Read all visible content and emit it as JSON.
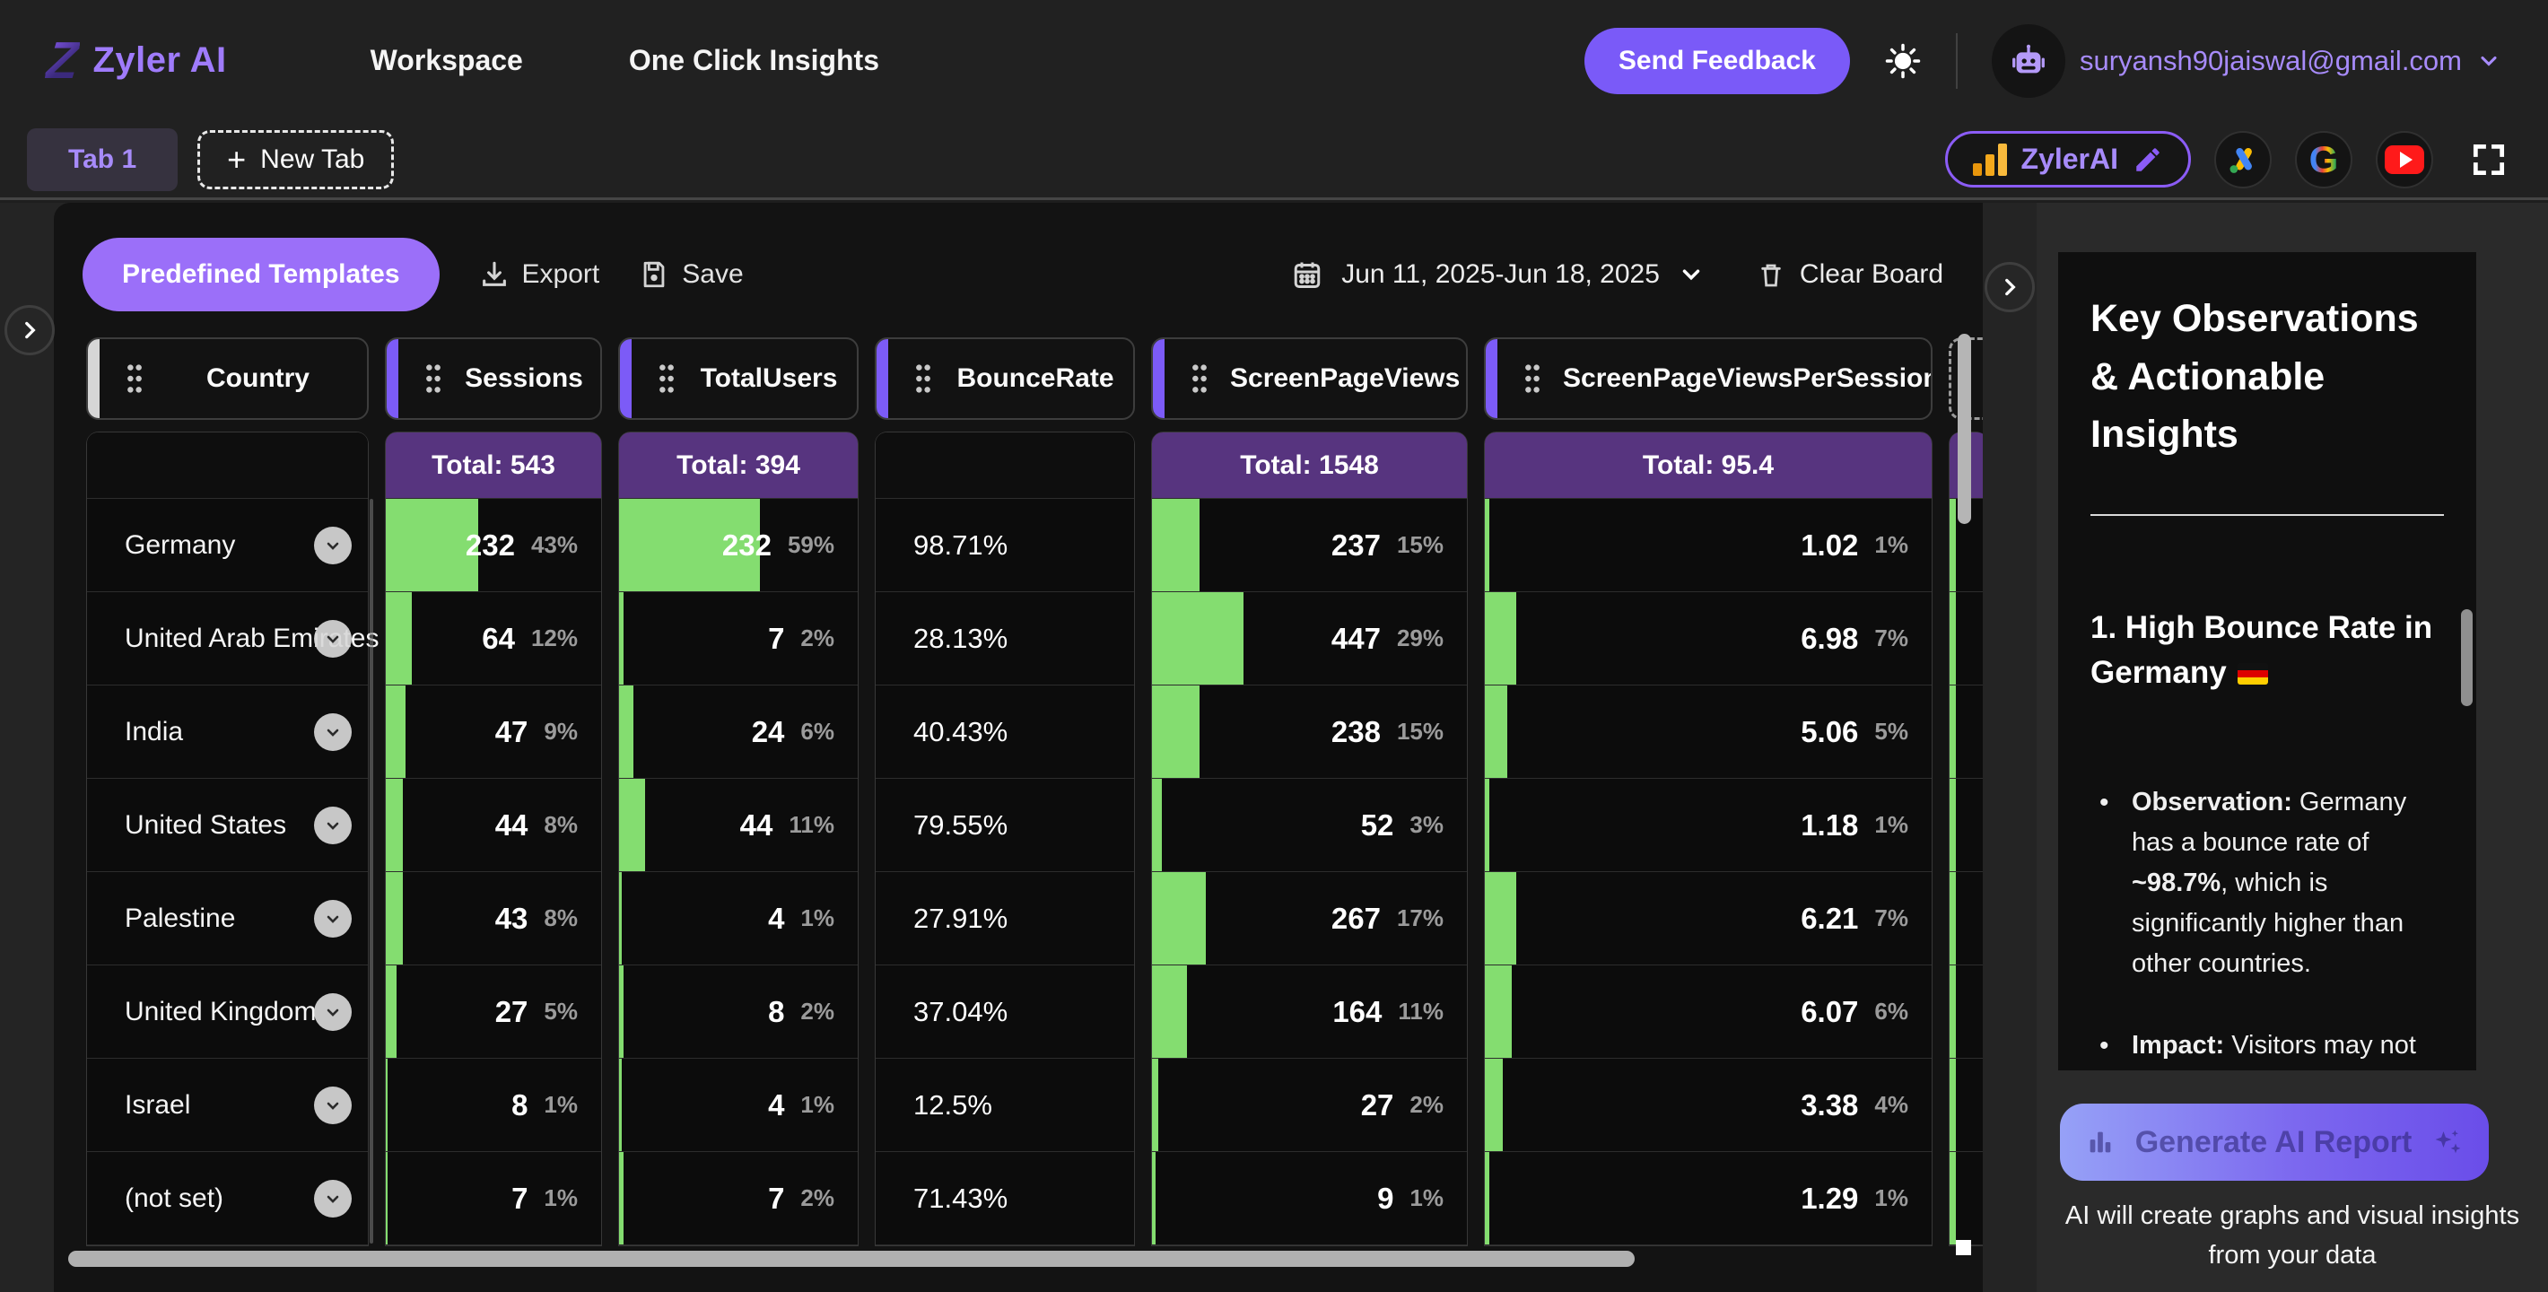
{
  "navbar": {
    "brand": "Zyler AI",
    "links": [
      {
        "label": "Workspace"
      },
      {
        "label": "One Click Insights"
      }
    ],
    "send_feedback_label": "Send Feedback",
    "email": "suryansh90jaiswal@gmail.com"
  },
  "tabbar": {
    "active_tab": "Tab 1",
    "new_tab_label": "New Tab",
    "property_badge": "ZylerAI"
  },
  "toolbar": {
    "templates_label": "Predefined Templates",
    "export_label": "Export",
    "save_label": "Save",
    "date_range": "Jun 11, 2025-Jun 18, 2025",
    "clear_label": "Clear Board"
  },
  "table": {
    "columns": [
      {
        "label": "Country",
        "total": ""
      },
      {
        "label": "Sessions",
        "total": "Total: 543"
      },
      {
        "label": "TotalUsers",
        "total": "Total: 394"
      },
      {
        "label": "BounceRate",
        "total": ""
      },
      {
        "label": "ScreenPageViews",
        "total": "Total: 1548"
      },
      {
        "label": "ScreenPageViewsPerSession",
        "total": "Total: 95.4"
      }
    ],
    "rows": [
      {
        "country": "Germany",
        "cells": [
          {
            "value": "232",
            "pct": "43%"
          },
          {
            "value": "232",
            "pct": "59%"
          },
          {
            "value": "98.71%"
          },
          {
            "value": "237",
            "pct": "15%"
          },
          {
            "value": "1.02",
            "pct": "1%"
          }
        ]
      },
      {
        "country": "United Arab Emirates",
        "cells": [
          {
            "value": "64",
            "pct": "12%"
          },
          {
            "value": "7",
            "pct": "2%"
          },
          {
            "value": "28.13%"
          },
          {
            "value": "447",
            "pct": "29%"
          },
          {
            "value": "6.98",
            "pct": "7%"
          }
        ]
      },
      {
        "country": "India",
        "cells": [
          {
            "value": "47",
            "pct": "9%"
          },
          {
            "value": "24",
            "pct": "6%"
          },
          {
            "value": "40.43%"
          },
          {
            "value": "238",
            "pct": "15%"
          },
          {
            "value": "5.06",
            "pct": "5%"
          }
        ]
      },
      {
        "country": "United States",
        "cells": [
          {
            "value": "44",
            "pct": "8%"
          },
          {
            "value": "44",
            "pct": "11%"
          },
          {
            "value": "79.55%"
          },
          {
            "value": "52",
            "pct": "3%"
          },
          {
            "value": "1.18",
            "pct": "1%"
          }
        ]
      },
      {
        "country": "Palestine",
        "cells": [
          {
            "value": "43",
            "pct": "8%"
          },
          {
            "value": "4",
            "pct": "1%"
          },
          {
            "value": "27.91%"
          },
          {
            "value": "267",
            "pct": "17%"
          },
          {
            "value": "6.21",
            "pct": "7%"
          }
        ]
      },
      {
        "country": "United Kingdom",
        "cells": [
          {
            "value": "27",
            "pct": "5%"
          },
          {
            "value": "8",
            "pct": "2%"
          },
          {
            "value": "37.04%"
          },
          {
            "value": "164",
            "pct": "11%"
          },
          {
            "value": "6.07",
            "pct": "6%"
          }
        ]
      },
      {
        "country": "Israel",
        "cells": [
          {
            "value": "8",
            "pct": "1%"
          },
          {
            "value": "4",
            "pct": "1%"
          },
          {
            "value": "12.5%"
          },
          {
            "value": "27",
            "pct": "2%"
          },
          {
            "value": "3.38",
            "pct": "4%"
          }
        ]
      },
      {
        "country": "(not set)",
        "cells": [
          {
            "value": "7",
            "pct": "1%"
          },
          {
            "value": "7",
            "pct": "2%"
          },
          {
            "value": "71.43%"
          },
          {
            "value": "9",
            "pct": "1%"
          },
          {
            "value": "1.29",
            "pct": "1%"
          }
        ]
      }
    ]
  },
  "insights": {
    "title": "Key Observations & Actionable Insights",
    "section_heading": "1. High Bounce Rate in Germany",
    "bullets": [
      {
        "parts": [
          {
            "text": "Observation:",
            "bold": true
          },
          {
            "text": " Germany has a bounce rate of ",
            "bold": false
          },
          {
            "text": "~98.7%",
            "bold": true
          },
          {
            "text": ", which is significantly higher than other countries.",
            "bold": false
          }
        ]
      },
      {
        "parts": [
          {
            "text": "Impact:",
            "bold": true
          },
          {
            "text": " Visitors may not be engaging with content or the landing pages",
            "bold": false
          }
        ]
      }
    ],
    "generate_label": "Generate AI Report",
    "caption": "AI will create graphs and visual insights from your data"
  },
  "colors": {
    "accent_purple": "#7c5bf7",
    "light_purple": "#a78bfa",
    "button_purple": "#9b6ff9",
    "total_header_purple": "#57347f",
    "green_bar": "#84dd70"
  }
}
